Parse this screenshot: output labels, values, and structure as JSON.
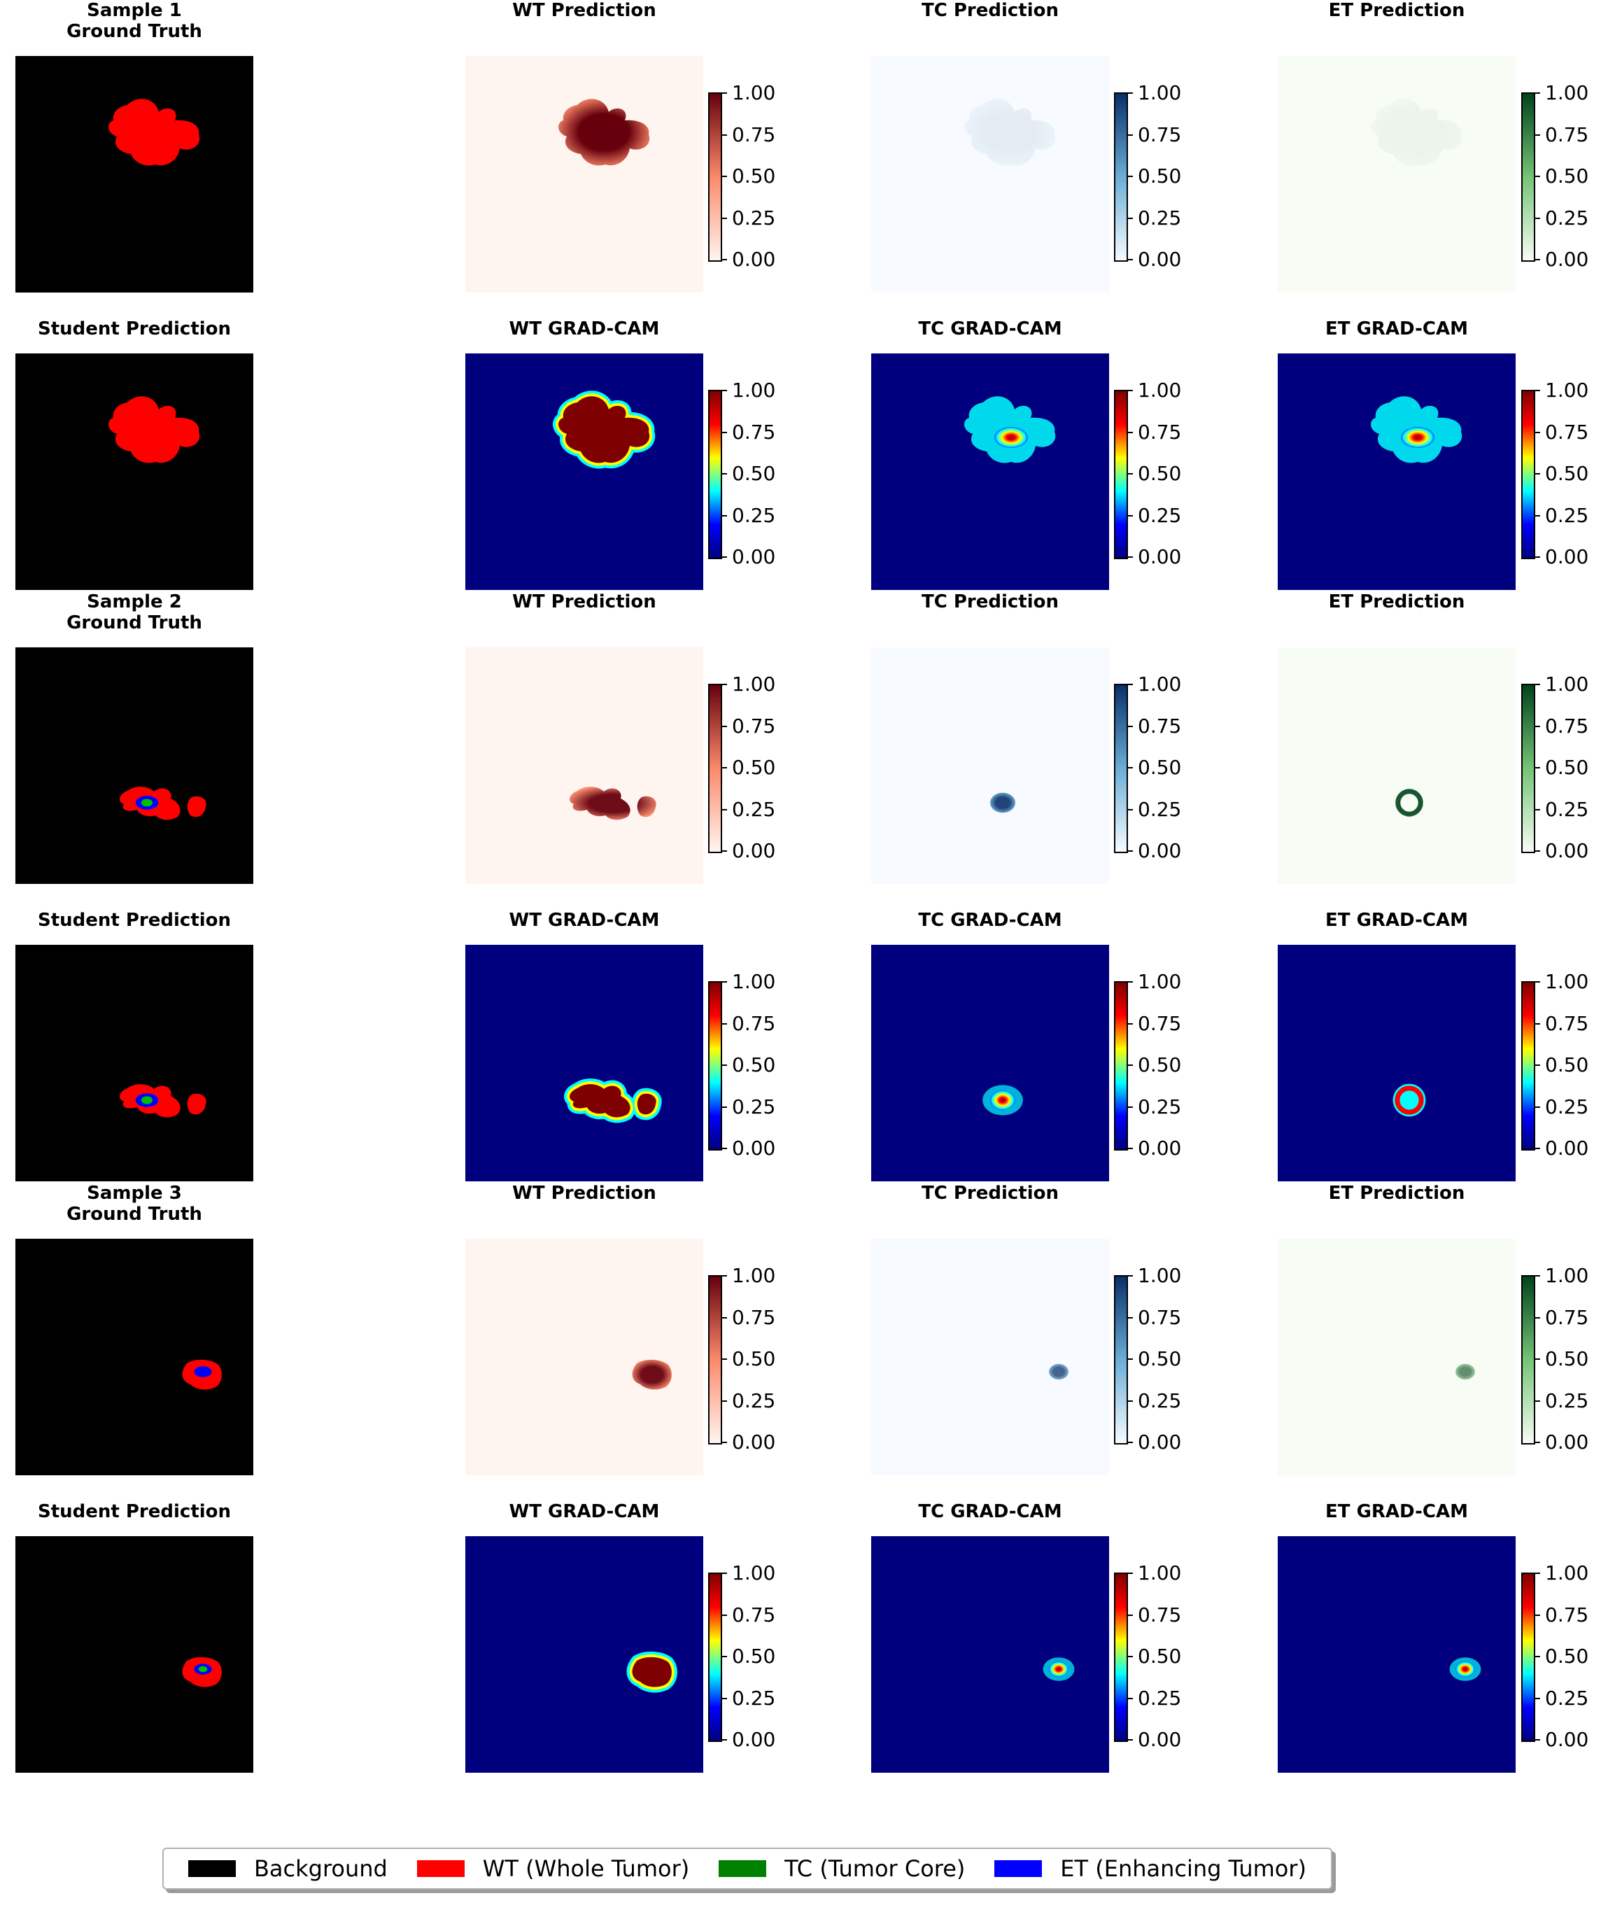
{
  "rows": [
    {
      "titles": [
        "Sample 1\nGround Truth",
        "WT Prediction",
        "TC Prediction",
        "ET Prediction"
      ],
      "kinds": [
        "seg",
        "prob",
        "prob",
        "prob"
      ],
      "shape": "blob1",
      "seg": {
        "red": true,
        "blue": false,
        "green": false
      },
      "probs": [
        {
          "intensity": 1.0,
          "core": false
        },
        {
          "intensity": 0.08,
          "core": false
        },
        {
          "intensity": 0.05,
          "core": false
        }
      ]
    },
    {
      "titles": [
        "Student Prediction",
        "WT GRAD-CAM",
        "TC GRAD-CAM",
        "ET GRAD-CAM"
      ],
      "kinds": [
        "seg",
        "cam",
        "cam",
        "cam"
      ],
      "shape": "blob1",
      "seg": {
        "red": true,
        "blue": false,
        "green": false
      },
      "cams": [
        {
          "style": "solid"
        },
        {
          "style": "speckle"
        },
        {
          "style": "speckle"
        }
      ]
    },
    {
      "titles": [
        "Sample 2\nGround Truth",
        "WT Prediction",
        "TC Prediction",
        "ET Prediction"
      ],
      "kinds": [
        "seg",
        "prob",
        "prob",
        "prob"
      ],
      "shape": "blob2",
      "seg": {
        "red": true,
        "blue": true,
        "green": true
      },
      "probs": [
        {
          "intensity": 0.95,
          "core": false
        },
        {
          "intensity": 0.9,
          "core": true
        },
        {
          "intensity": 0.9,
          "core": true,
          "ring": true
        }
      ]
    },
    {
      "titles": [
        "Student Prediction",
        "WT GRAD-CAM",
        "TC GRAD-CAM",
        "ET GRAD-CAM"
      ],
      "kinds": [
        "seg",
        "cam",
        "cam",
        "cam"
      ],
      "shape": "blob2",
      "seg": {
        "red": true,
        "blue": true,
        "green": true
      },
      "cams": [
        {
          "style": "solid"
        },
        {
          "style": "core"
        },
        {
          "style": "ring"
        }
      ]
    },
    {
      "titles": [
        "Sample 3\nGround Truth",
        "WT Prediction",
        "TC Prediction",
        "ET Prediction"
      ],
      "kinds": [
        "seg",
        "prob",
        "prob",
        "prob"
      ],
      "shape": "blob3",
      "seg": {
        "red": true,
        "blue": true,
        "green": false
      },
      "probs": [
        {
          "intensity": 0.95,
          "core": false
        },
        {
          "intensity": 0.75,
          "core": true
        },
        {
          "intensity": 0.6,
          "core": true
        }
      ]
    },
    {
      "titles": [
        "Student Prediction",
        "WT GRAD-CAM",
        "TC GRAD-CAM",
        "ET GRAD-CAM"
      ],
      "kinds": [
        "seg",
        "cam",
        "cam",
        "cam"
      ],
      "shape": "blob3",
      "seg": {
        "red": true,
        "blue": true,
        "green": true
      },
      "cams": [
        {
          "style": "solid"
        },
        {
          "style": "core"
        },
        {
          "style": "core"
        }
      ]
    }
  ],
  "colorbar_ticks": [
    "1.00",
    "0.75",
    "0.50",
    "0.25",
    "0.00"
  ],
  "colormaps": {
    "WT": {
      "light": "#fff5f0",
      "mid": "#fb8a6a",
      "dark": "#67000d"
    },
    "TC": {
      "light": "#f7fbff",
      "mid": "#6baed6",
      "dark": "#08306b"
    },
    "ET": {
      "light": "#f7fcf5",
      "mid": "#74c476",
      "dark": "#00441b"
    },
    "jet": [
      "#00007f",
      "#0000ff",
      "#00ffff",
      "#ffff00",
      "#ff0000",
      "#7f0000"
    ]
  },
  "legend": [
    {
      "label": "Background",
      "color": "#000000"
    },
    {
      "label": "WT (Whole Tumor)",
      "color": "#ff0000"
    },
    {
      "label": "TC (Tumor Core)",
      "color": "#008000"
    },
    {
      "label": "ET (Enhancing Tumor)",
      "color": "#0000ff"
    }
  ]
}
